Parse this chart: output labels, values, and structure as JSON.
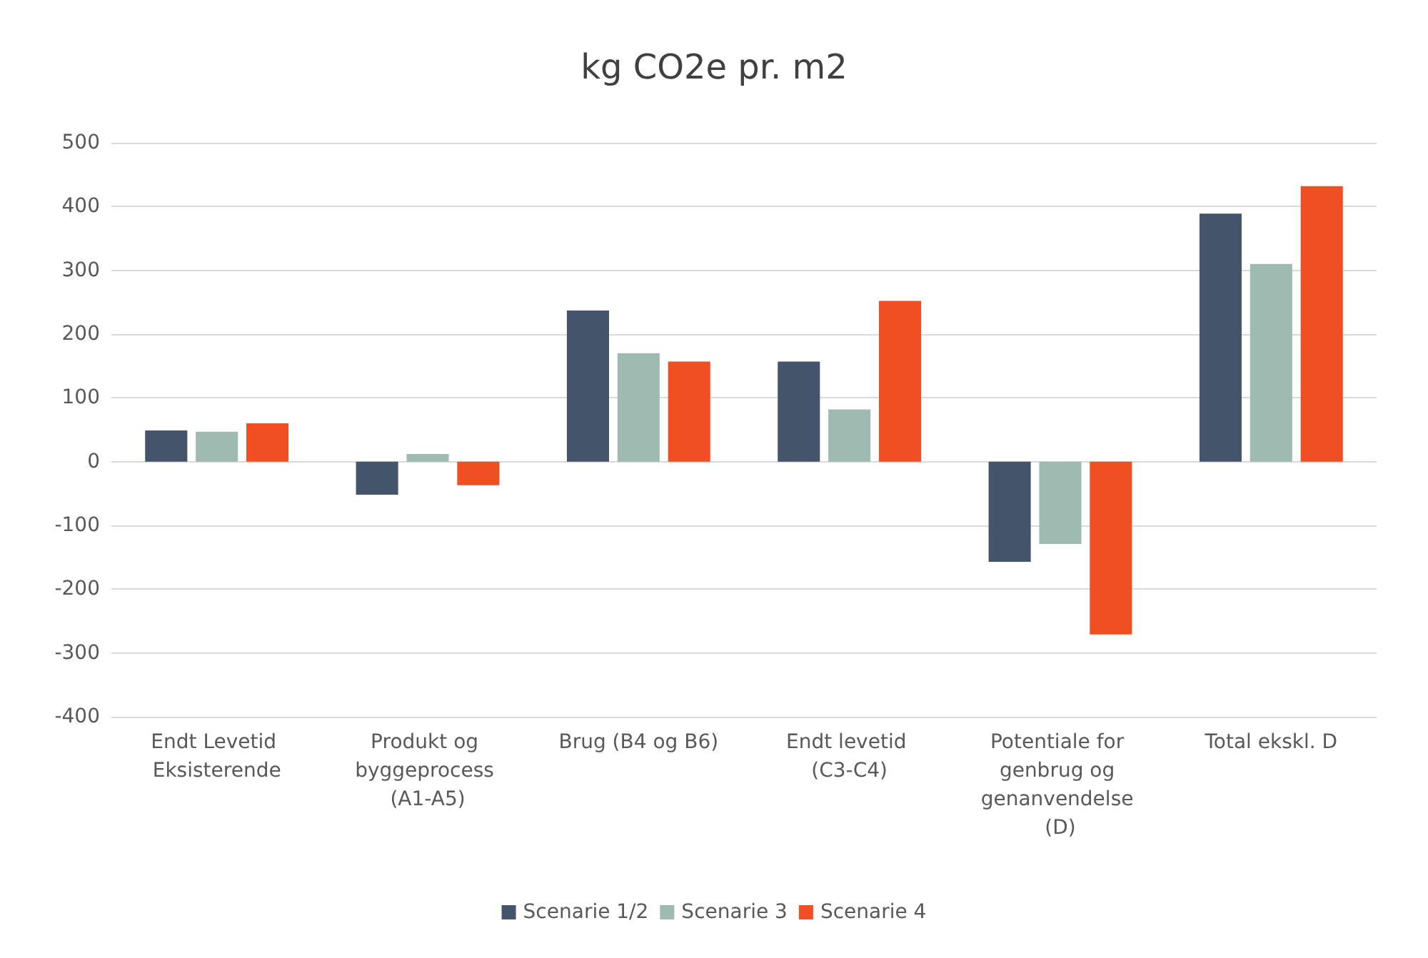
{
  "chart_data": {
    "type": "bar",
    "title": "kg CO2e pr. m2",
    "categories": [
      "Endt Levetid Eksisterende",
      "Produkt og byggeprocess (A1-A5)",
      "Brug (B4 og B6)",
      "Endt levetid (C3-C4)",
      "Potentiale for genbrug og genanvendelse (D)",
      "Total ekskl. D"
    ],
    "series": [
      {
        "name": "Scenarie 1/2",
        "color": "#44546a",
        "values": [
          49,
          -52,
          237,
          157,
          -157,
          389
        ]
      },
      {
        "name": "Scenarie 3",
        "color": "#9fbab1",
        "values": [
          47,
          12,
          170,
          82,
          -129,
          310
        ]
      },
      {
        "name": "Scenarie 4",
        "color": "#f04e23",
        "values": [
          60,
          -37,
          157,
          252,
          -271,
          432
        ]
      }
    ],
    "ylim": [
      -400,
      500
    ],
    "yticks": [
      -400,
      -300,
      -200,
      -100,
      0,
      100,
      200,
      300,
      400,
      500
    ],
    "grid": "y",
    "legend": "bottom"
  }
}
